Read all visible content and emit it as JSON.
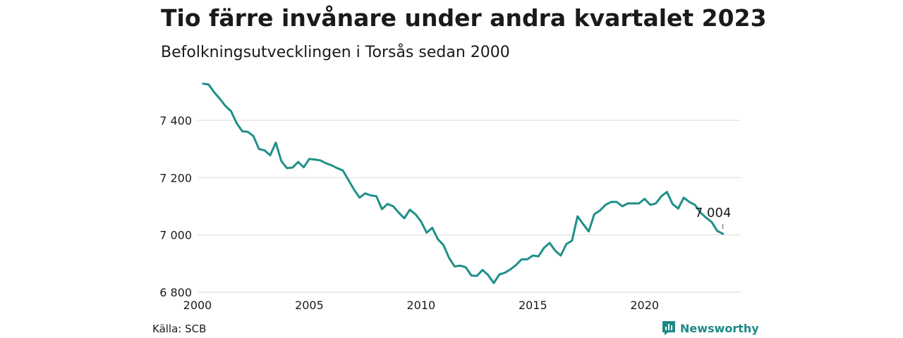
{
  "title": "Tio färre invånare under andra kvartalet 2023",
  "subtitle": "Befolkningsutvecklingen i Torsås sedan 2000",
  "source": "Källa: SCB",
  "brand": {
    "name": "Newsworthy",
    "icon": "newsworthy-logo-icon",
    "color": "#1e8a87"
  },
  "chart_data": {
    "type": "line",
    "title": "Tio färre invånare under andra kvartalet 2023",
    "subtitle": "Befolkningsutvecklingen i Torsås sedan 2000",
    "xlabel": "",
    "ylabel": "",
    "xlim": [
      2000,
      2024.3
    ],
    "ylim": [
      6800,
      7530
    ],
    "x_ticks": [
      2000,
      2005,
      2010,
      2015,
      2020
    ],
    "x_tick_labels": [
      "2000",
      "2005",
      "2010",
      "2015",
      "2020"
    ],
    "y_ticks": [
      6800,
      7000,
      7200,
      7400
    ],
    "y_tick_labels": [
      "6 800",
      "7 000",
      "7 200",
      "7 400"
    ],
    "grid": "horizontal",
    "line_color": "#1e9088",
    "end_label": "7 004",
    "series": [
      {
        "x": [
          2000.25,
          2000.5,
          2000.75,
          2001,
          2001.25,
          2001.5,
          2001.75,
          2002,
          2002.25,
          2002.5,
          2002.75,
          2003,
          2003.25,
          2003.5,
          2003.75,
          2004,
          2004.25,
          2004.5,
          2004.75,
          2005,
          2005.25,
          2005.5,
          2005.75,
          2006,
          2006.25,
          2006.5,
          2006.75,
          2007,
          2007.25,
          2007.5,
          2007.75,
          2008,
          2008.25,
          2008.5,
          2008.75,
          2009,
          2009.25,
          2009.5,
          2009.75,
          2010,
          2010.25,
          2010.5,
          2010.75,
          2011,
          2011.25,
          2011.5,
          2011.75,
          2012,
          2012.25,
          2012.5,
          2012.75,
          2013,
          2013.25,
          2013.5,
          2013.75,
          2014,
          2014.25,
          2014.5,
          2014.75,
          2015,
          2015.25,
          2015.5,
          2015.75,
          2016,
          2016.25,
          2016.5,
          2016.75,
          2017,
          2017.25,
          2017.5,
          2017.75,
          2018,
          2018.25,
          2018.5,
          2018.75,
          2019,
          2019.25,
          2019.5,
          2019.75,
          2020,
          2020.25,
          2020.5,
          2020.75,
          2021,
          2021.25,
          2021.5,
          2021.75,
          2022,
          2022.25,
          2022.5,
          2022.75,
          2023,
          2023.25,
          2023.5
        ],
        "y": [
          7528,
          7525,
          7497,
          7475,
          7450,
          7432,
          7390,
          7362,
          7360,
          7345,
          7300,
          7295,
          7278,
          7322,
          7258,
          7233,
          7235,
          7255,
          7236,
          7265,
          7263,
          7260,
          7250,
          7243,
          7233,
          7225,
          7192,
          7158,
          7130,
          7145,
          7138,
          7135,
          7090,
          7108,
          7100,
          7078,
          7058,
          7088,
          7072,
          7047,
          7008,
          7025,
          6985,
          6965,
          6920,
          6890,
          6893,
          6887,
          6858,
          6857,
          6878,
          6860,
          6832,
          6862,
          6868,
          6880,
          6895,
          6915,
          6915,
          6928,
          6925,
          6955,
          6972,
          6945,
          6928,
          6968,
          6980,
          7065,
          7038,
          7012,
          7072,
          7085,
          7105,
          7115,
          7115,
          7100,
          7110,
          7110,
          7110,
          7126,
          7105,
          7110,
          7135,
          7150,
          7108,
          7092,
          7130,
          7115,
          7105,
          7078,
          7060,
          7045,
          7014,
          7004
        ]
      }
    ]
  }
}
